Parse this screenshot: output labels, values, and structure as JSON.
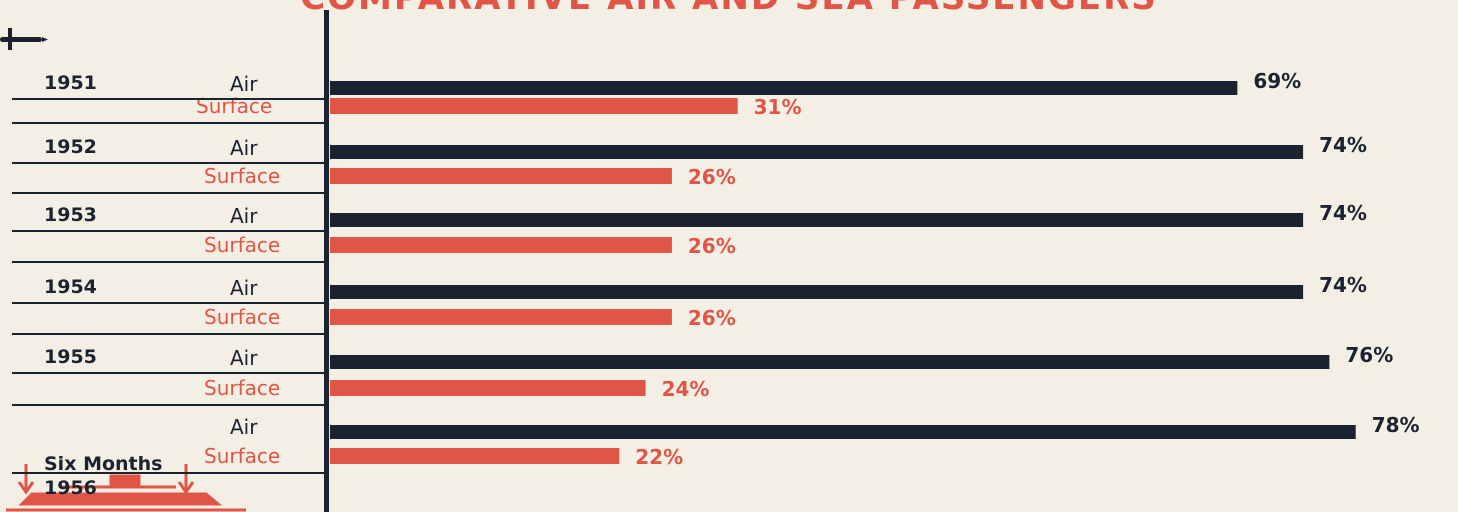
{
  "colors": {
    "air": "#1b2330",
    "surface": "#e05545",
    "background": "#f3efe4"
  },
  "title": "COMPARATIVE AIR AND SEA PASSENGERS",
  "footer_text": "",
  "icons": [
    "airplane-icon",
    "ship-icon"
  ],
  "chart_data": {
    "type": "bar",
    "orientation": "horizontal",
    "title": "COMPARATIVE AIR AND SEA PASSENGERS",
    "categories": [
      "1951",
      "1952",
      "1953",
      "1954",
      "1955",
      "Six Months 1956"
    ],
    "series": [
      {
        "name": "Air",
        "values": [
          69,
          74,
          74,
          74,
          76,
          78
        ],
        "labels": [
          "69%",
          "74%",
          "74%",
          "74%",
          "76%",
          "78%"
        ]
      },
      {
        "name": "Surface",
        "values": [
          31,
          26,
          26,
          26,
          24,
          22
        ],
        "labels": [
          "31%",
          "26%",
          "26%",
          "26%",
          "24%",
          "22%"
        ]
      }
    ],
    "unit": "%",
    "xlim": [
      0,
      78
    ],
    "grid": false
  }
}
